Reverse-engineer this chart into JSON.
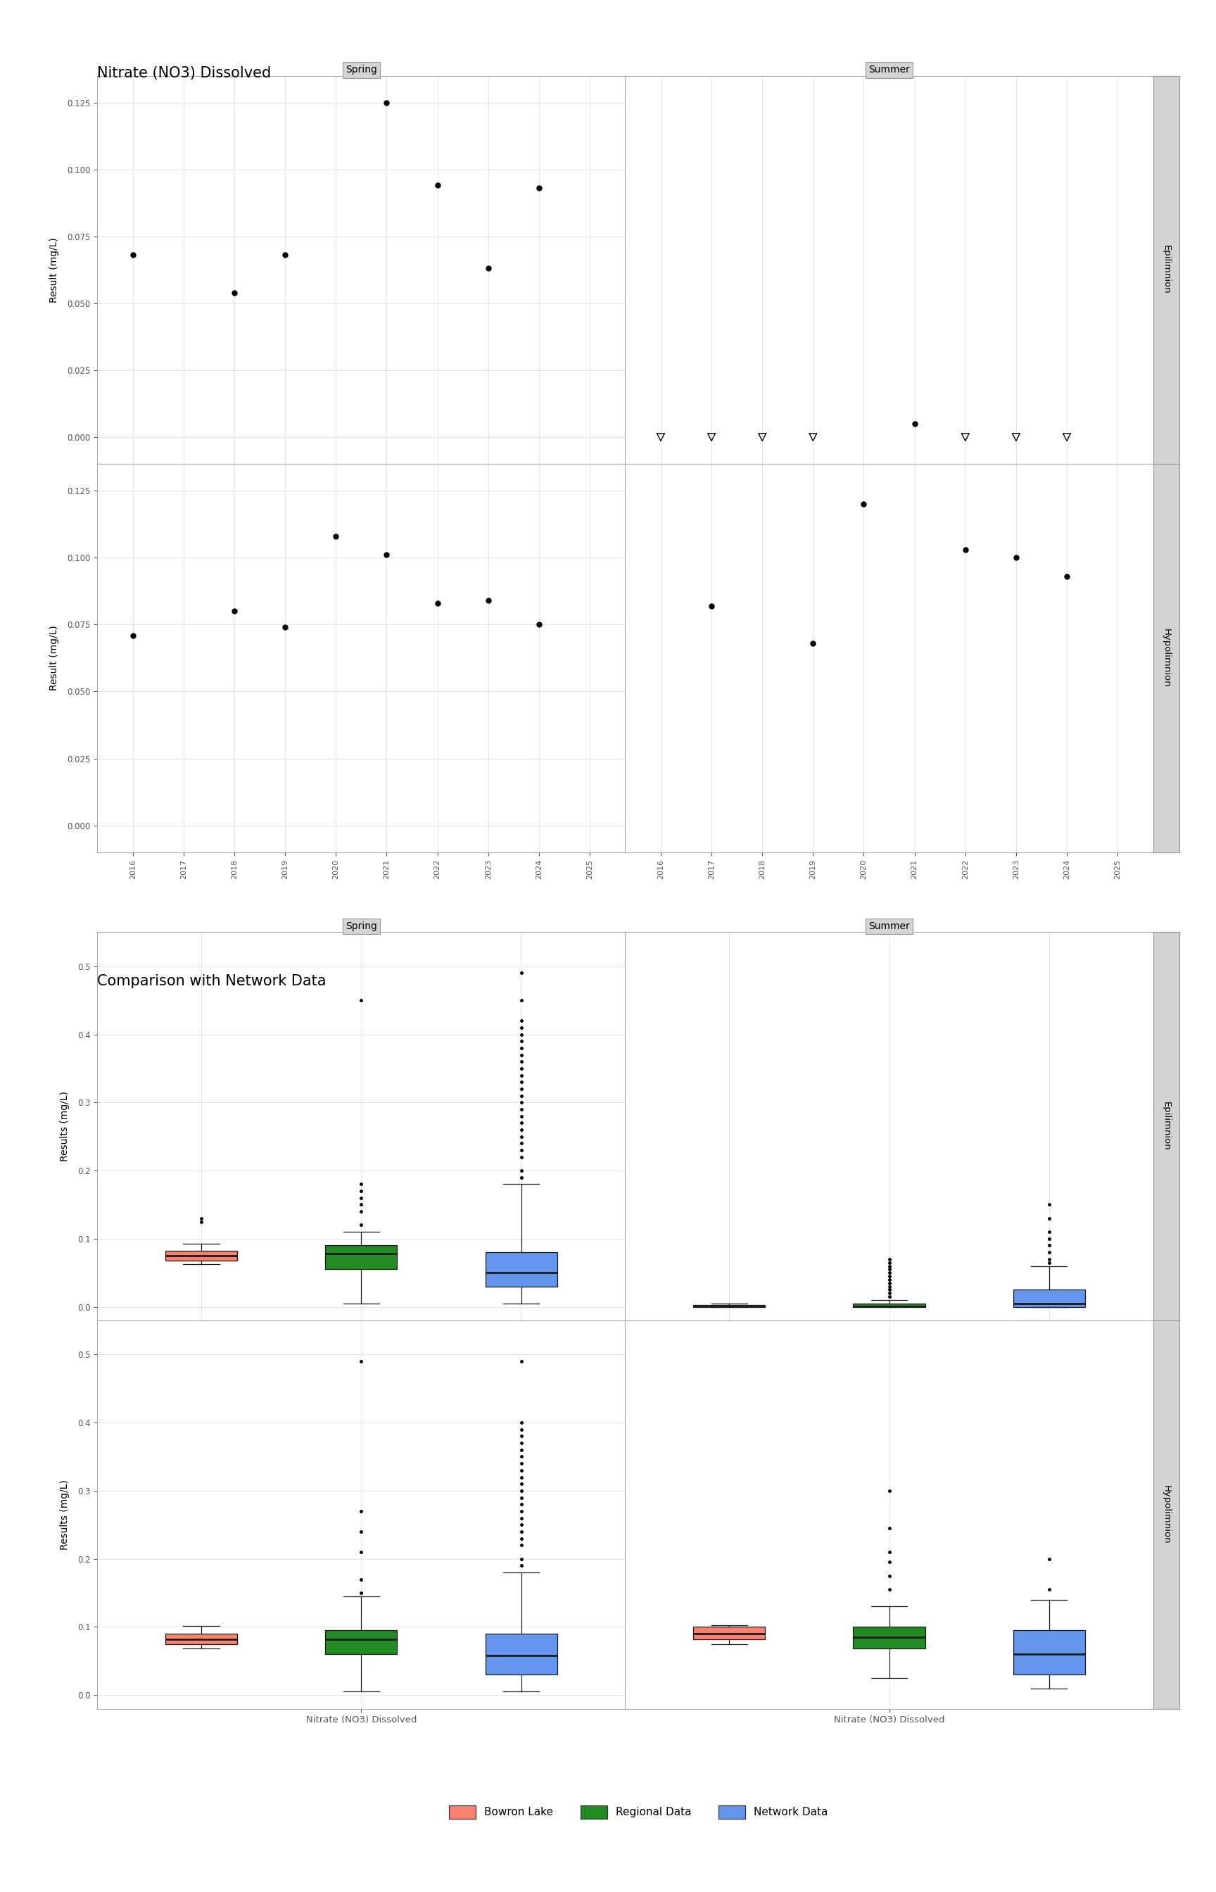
{
  "title1": "Nitrate (NO3) Dissolved",
  "title2": "Comparison with Network Data",
  "ylabel_top": "Result (mg/L)",
  "ylabel_bottom": "Results (mg/L)",
  "xlabel_bottom": "Nitrate (NO3) Dissolved",
  "scatter_spring_epi": {
    "years": [
      2016,
      2018,
      2019,
      2021,
      2022,
      2023,
      2024
    ],
    "values": [
      0.068,
      0.054,
      0.068,
      0.125,
      0.094,
      0.063,
      0.093
    ]
  },
  "scatter_summer_epi": {
    "years": [
      2016,
      2017,
      2018,
      2019,
      2021,
      2022,
      2023,
      2024
    ],
    "values": [
      0.0,
      0.0,
      0.0,
      0.0,
      0.005,
      0.0,
      0.0,
      0.0
    ],
    "is_triangle": [
      true,
      true,
      true,
      true,
      false,
      true,
      true,
      true
    ]
  },
  "scatter_spring_hypo": {
    "years": [
      2016,
      2018,
      2019,
      2020,
      2021,
      2022,
      2023,
      2024
    ],
    "values": [
      0.071,
      0.08,
      0.074,
      0.108,
      0.101,
      0.083,
      0.084,
      0.075
    ]
  },
  "scatter_summer_hypo": {
    "years": [
      2017,
      2019,
      2020,
      2022,
      2023,
      2024
    ],
    "values": [
      0.082,
      0.068,
      0.12,
      0.103,
      0.1,
      0.093
    ]
  },
  "box_spring_epi_bowron": {
    "q1": 0.068,
    "median": 0.075,
    "q3": 0.082,
    "whislo": 0.063,
    "whishi": 0.093,
    "fliers": [
      0.125,
      0.13
    ]
  },
  "box_spring_epi_regional": {
    "q1": 0.055,
    "median": 0.078,
    "q3": 0.09,
    "whislo": 0.005,
    "whishi": 0.11,
    "fliers": [
      0.12,
      0.14,
      0.15,
      0.16,
      0.17,
      0.18,
      0.45
    ]
  },
  "box_spring_epi_network": {
    "q1": 0.03,
    "median": 0.05,
    "q3": 0.08,
    "whislo": 0.005,
    "whishi": 0.18,
    "fliers": [
      0.19,
      0.2,
      0.22,
      0.23,
      0.24,
      0.25,
      0.26,
      0.27,
      0.28,
      0.29,
      0.3,
      0.31,
      0.32,
      0.33,
      0.34,
      0.35,
      0.36,
      0.37,
      0.38,
      0.39,
      0.4,
      0.41,
      0.42,
      0.45,
      0.49
    ]
  },
  "box_summer_epi_bowron": {
    "q1": 0.0,
    "median": 0.001,
    "q3": 0.003,
    "whislo": 0.0,
    "whishi": 0.005,
    "fliers": []
  },
  "box_summer_epi_regional": {
    "q1": 0.0,
    "median": 0.001,
    "q3": 0.005,
    "whislo": 0.0,
    "whishi": 0.01,
    "fliers": [
      0.015,
      0.02,
      0.025,
      0.03,
      0.035,
      0.04,
      0.045,
      0.05,
      0.055,
      0.06,
      0.065,
      0.07
    ]
  },
  "box_summer_epi_network": {
    "q1": 0.0,
    "median": 0.005,
    "q3": 0.025,
    "whislo": 0.0,
    "whishi": 0.06,
    "fliers": [
      0.065,
      0.07,
      0.08,
      0.09,
      0.1,
      0.11,
      0.13,
      0.15
    ]
  },
  "box_spring_hypo_bowron": {
    "q1": 0.075,
    "median": 0.082,
    "q3": 0.09,
    "whislo": 0.068,
    "whishi": 0.101,
    "fliers": []
  },
  "box_spring_hypo_regional": {
    "q1": 0.06,
    "median": 0.082,
    "q3": 0.095,
    "whislo": 0.005,
    "whishi": 0.145,
    "fliers": [
      0.15,
      0.17,
      0.21,
      0.24,
      0.27,
      0.49
    ]
  },
  "box_spring_hypo_network": {
    "q1": 0.03,
    "median": 0.058,
    "q3": 0.09,
    "whislo": 0.005,
    "whishi": 0.18,
    "fliers": [
      0.19,
      0.2,
      0.22,
      0.23,
      0.24,
      0.25,
      0.26,
      0.27,
      0.28,
      0.29,
      0.3,
      0.31,
      0.32,
      0.33,
      0.34,
      0.35,
      0.36,
      0.37,
      0.38,
      0.39,
      0.4,
      0.49
    ]
  },
  "box_summer_hypo_bowron": {
    "q1": 0.082,
    "median": 0.09,
    "q3": 0.1,
    "whislo": 0.075,
    "whishi": 0.103,
    "fliers": []
  },
  "box_summer_hypo_regional": {
    "q1": 0.068,
    "median": 0.085,
    "q3": 0.1,
    "whislo": 0.025,
    "whishi": 0.13,
    "fliers": [
      0.155,
      0.175,
      0.195,
      0.21,
      0.245,
      0.3
    ]
  },
  "box_summer_hypo_network": {
    "q1": 0.03,
    "median": 0.06,
    "q3": 0.095,
    "whislo": 0.01,
    "whishi": 0.14,
    "fliers": [
      0.155,
      0.2
    ]
  },
  "colors": {
    "bowron": "#FA8072",
    "regional": "#228B22",
    "network": "#6495ED"
  },
  "legend_labels": [
    "Bowron Lake",
    "Regional Data",
    "Network Data"
  ],
  "background_color": "#ffffff",
  "strip_bg": "#d3d3d3",
  "grid_color": "#e0e0e0"
}
